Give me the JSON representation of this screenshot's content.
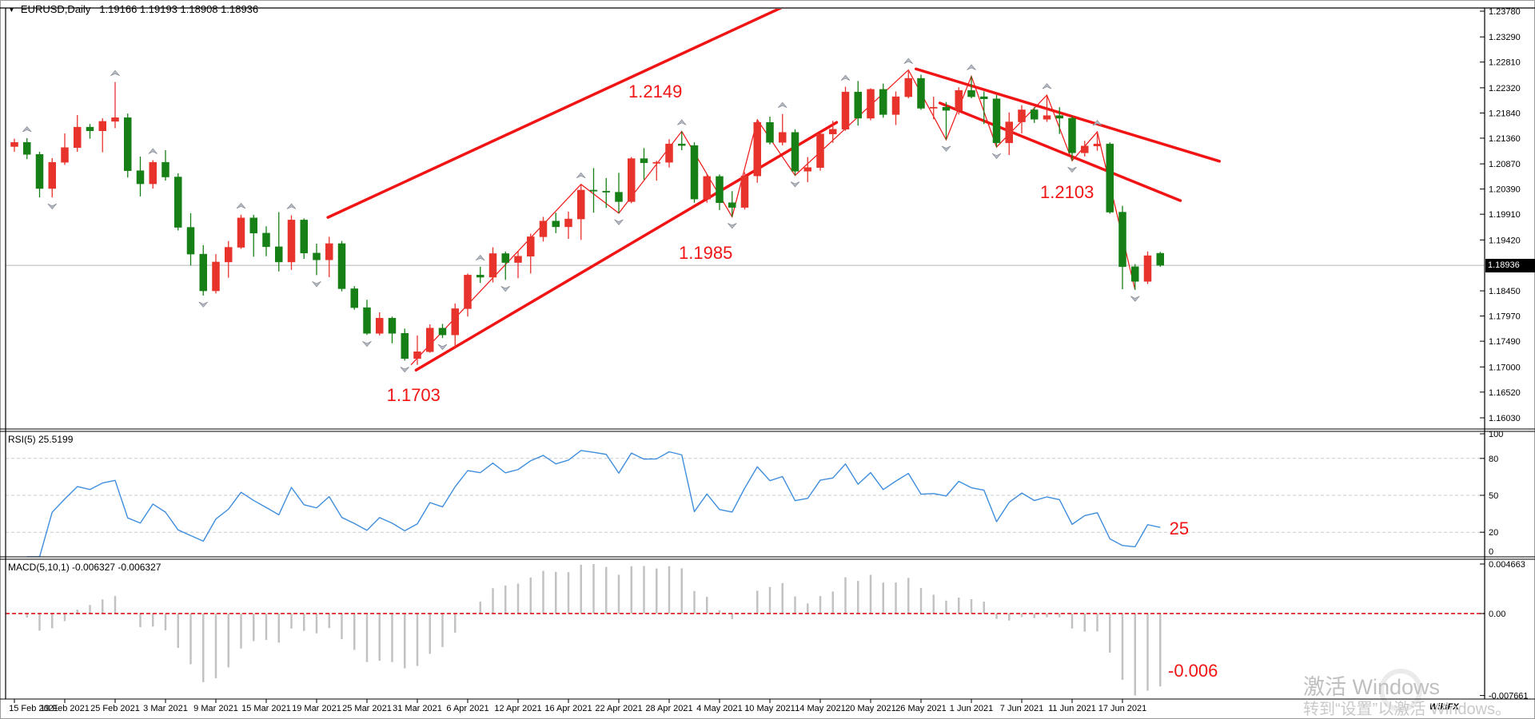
{
  "title": {
    "dropdown_icon": "▼",
    "symbol_timeframe": "EURUSD,Daily",
    "ohlc": "1.19166 1.19193 1.18908 1.18936"
  },
  "colors": {
    "bull": "#e8322c",
    "bear": "#168016",
    "line_red": "#f01414",
    "rsi_line": "#3f8ede",
    "macd_bar": "#c2c2c2",
    "level_dash": "#c8c8c8",
    "zero_dash": "#dd0000",
    "price_line": "#b8b8b8",
    "badge_bg": "#000000",
    "badge_text": "#ffffff",
    "frame": "#000000",
    "fractal": "#b4b9c2",
    "watermark_ghost": "#ebebeb"
  },
  "chart_data": {
    "type": "candlestick",
    "symbol": "EURUSD",
    "timeframe": "Daily",
    "title": "EURUSD,Daily 1.19166 1.19193 1.18908 1.18936",
    "current_price": 1.18936,
    "current_price_label": "1.18936",
    "price_axis": {
      "max": 1.2378,
      "min": 1.1603,
      "ticks": [
        "1.23780",
        "1.23290",
        "1.22810",
        "1.22320",
        "1.21840",
        "1.21360",
        "1.20870",
        "1.20390",
        "1.19910",
        "1.19420",
        "1.18450",
        "1.17970",
        "1.17490",
        "1.17000",
        "1.16520",
        "1.16030"
      ]
    },
    "candles": [
      [
        1.212,
        1.2135,
        1.211,
        1.2128
      ],
      [
        1.2128,
        1.2136,
        1.2096,
        1.2105
      ],
      [
        1.2105,
        1.211,
        1.2023,
        1.204
      ],
      [
        1.204,
        1.2098,
        1.2023,
        1.209
      ],
      [
        1.209,
        1.2145,
        1.2085,
        1.2118
      ],
      [
        1.2118,
        1.218,
        1.211,
        1.2157
      ],
      [
        1.2157,
        1.2163,
        1.2135,
        1.215
      ],
      [
        1.215,
        1.2174,
        1.2109,
        1.2168
      ],
      [
        1.2168,
        1.2243,
        1.2155,
        1.2175
      ],
      [
        1.2175,
        1.2183,
        1.2061,
        1.2074
      ],
      [
        1.2074,
        1.2101,
        1.2025,
        1.2049
      ],
      [
        1.2049,
        1.2094,
        1.204,
        1.209
      ],
      [
        1.209,
        1.2113,
        1.2055,
        1.2062
      ],
      [
        1.2062,
        1.2069,
        1.196,
        1.1966
      ],
      [
        1.1966,
        1.1993,
        1.1893,
        1.1915
      ],
      [
        1.1915,
        1.1932,
        1.1836,
        1.1845
      ],
      [
        1.1845,
        1.1915,
        1.184,
        1.19
      ],
      [
        1.19,
        1.194,
        1.187,
        1.1928
      ],
      [
        1.1928,
        1.199,
        1.1925,
        1.1984
      ],
      [
        1.1984,
        1.199,
        1.191,
        1.1955
      ],
      [
        1.1955,
        1.1968,
        1.1911,
        1.1929
      ],
      [
        1.1929,
        1.1995,
        1.1882,
        1.19
      ],
      [
        1.19,
        1.1989,
        1.1885,
        1.198
      ],
      [
        1.198,
        1.1983,
        1.1906,
        1.1917
      ],
      [
        1.1917,
        1.1935,
        1.1875,
        1.1904
      ],
      [
        1.1904,
        1.1948,
        1.1871,
        1.1935
      ],
      [
        1.1935,
        1.194,
        1.1844,
        1.1849
      ],
      [
        1.1849,
        1.1854,
        1.1809,
        1.1813
      ],
      [
        1.1813,
        1.1828,
        1.1761,
        1.1764
      ],
      [
        1.1764,
        1.1804,
        1.176,
        1.1793
      ],
      [
        1.1793,
        1.1796,
        1.1745,
        1.1764
      ],
      [
        1.1764,
        1.1773,
        1.1712,
        1.1716
      ],
      [
        1.1716,
        1.176,
        1.1704,
        1.1729
      ],
      [
        1.1729,
        1.1781,
        1.1727,
        1.1774
      ],
      [
        1.1774,
        1.1782,
        1.1755,
        1.1761
      ],
      [
        1.1761,
        1.1821,
        1.1736,
        1.1811
      ],
      [
        1.1811,
        1.1878,
        1.1796,
        1.1875
      ],
      [
        1.1875,
        1.1891,
        1.186,
        1.1871
      ],
      [
        1.1871,
        1.1928,
        1.1861,
        1.1916
      ],
      [
        1.1916,
        1.192,
        1.1866,
        1.1899
      ],
      [
        1.1899,
        1.192,
        1.1869,
        1.1911
      ],
      [
        1.1911,
        1.1954,
        1.1878,
        1.1948
      ],
      [
        1.1948,
        1.1986,
        1.1939,
        1.1978
      ],
      [
        1.1978,
        1.1994,
        1.1955,
        1.1967
      ],
      [
        1.1967,
        1.1996,
        1.1944,
        1.1982
      ],
      [
        1.1982,
        1.2048,
        1.1942,
        1.2037
      ],
      [
        1.2037,
        1.2079,
        1.1994,
        1.2035
      ],
      [
        1.2035,
        1.206,
        1.2003,
        1.2033
      ],
      [
        1.2033,
        1.207,
        1.1993,
        1.2015
      ],
      [
        1.2015,
        1.21,
        1.2012,
        1.2097
      ],
      [
        1.2097,
        1.2117,
        1.2057,
        1.2089
      ],
      [
        1.2089,
        1.2093,
        1.2055,
        1.209
      ],
      [
        1.209,
        1.2134,
        1.208,
        1.2125
      ],
      [
        1.2125,
        1.2149,
        1.2113,
        1.2122
      ],
      [
        1.2122,
        1.2128,
        1.2013,
        1.202
      ],
      [
        1.202,
        1.2068,
        1.2013,
        1.2063
      ],
      [
        1.2063,
        1.2067,
        1.1999,
        1.2013
      ],
      [
        1.2013,
        1.2035,
        1.1986,
        1.2004
      ],
      [
        1.2004,
        1.2071,
        1.2,
        1.2064
      ],
      [
        1.2064,
        1.2171,
        1.2051,
        1.2166
      ],
      [
        1.2166,
        1.2177,
        1.2124,
        1.2128
      ],
      [
        1.2128,
        1.2182,
        1.2122,
        1.2147
      ],
      [
        1.2147,
        1.2153,
        1.2065,
        1.2073
      ],
      [
        1.2073,
        1.21,
        1.2052,
        1.208
      ],
      [
        1.208,
        1.2148,
        1.2074,
        1.2144
      ],
      [
        1.2144,
        1.2169,
        1.2127,
        1.2153
      ],
      [
        1.2153,
        1.2234,
        1.215,
        1.2224
      ],
      [
        1.2224,
        1.2245,
        1.216,
        1.2174
      ],
      [
        1.2174,
        1.2231,
        1.217,
        1.2229
      ],
      [
        1.2229,
        1.224,
        1.2175,
        1.2181
      ],
      [
        1.2181,
        1.2225,
        1.2161,
        1.2215
      ],
      [
        1.2215,
        1.2266,
        1.2212,
        1.225
      ],
      [
        1.225,
        1.2257,
        1.219,
        1.2193
      ],
      [
        1.2193,
        1.2215,
        1.2172,
        1.2195
      ],
      [
        1.2195,
        1.2205,
        1.2133,
        1.2189
      ],
      [
        1.2189,
        1.2233,
        1.2181,
        1.2227
      ],
      [
        1.2227,
        1.2254,
        1.2212,
        1.2215
      ],
      [
        1.2215,
        1.2225,
        1.2163,
        1.2211
      ],
      [
        1.2211,
        1.2218,
        1.2119,
        1.2127
      ],
      [
        1.2127,
        1.2185,
        1.2104,
        1.2167
      ],
      [
        1.2167,
        1.2199,
        1.2145,
        1.219
      ],
      [
        1.219,
        1.2195,
        1.2165,
        1.2172
      ],
      [
        1.2172,
        1.2218,
        1.2167,
        1.2179
      ],
      [
        1.2179,
        1.2195,
        1.2144,
        1.2174
      ],
      [
        1.2174,
        1.2178,
        1.2093,
        1.2108
      ],
      [
        1.2108,
        1.2131,
        1.2101,
        1.2121
      ],
      [
        1.2121,
        1.2148,
        1.2112,
        1.2125
      ],
      [
        1.2125,
        1.2128,
        1.1992,
        1.1995
      ],
      [
        1.1995,
        1.2007,
        1.1848,
        1.1891
      ],
      [
        1.1891,
        1.1896,
        1.1847,
        1.1863
      ],
      [
        1.1863,
        1.192,
        1.1858,
        1.1912
      ],
      [
        1.19166,
        1.19193,
        1.18908,
        1.18936
      ]
    ],
    "date_ticks": [
      {
        "i": 0,
        "label": "15 Feb 2021"
      },
      {
        "i": 4,
        "label": "19 Feb 2021"
      },
      {
        "i": 8,
        "label": "25 Feb 2021"
      },
      {
        "i": 12,
        "label": "3 Mar 2021"
      },
      {
        "i": 16,
        "label": "9 Mar 2021"
      },
      {
        "i": 20,
        "label": "15 Mar 2021"
      },
      {
        "i": 24,
        "label": "19 Mar 2021"
      },
      {
        "i": 28,
        "label": "25 Mar 2021"
      },
      {
        "i": 32,
        "label": "31 Mar 2021"
      },
      {
        "i": 36,
        "label": "6 Apr 2021"
      },
      {
        "i": 40,
        "label": "12 Apr 2021"
      },
      {
        "i": 44,
        "label": "16 Apr 2021"
      },
      {
        "i": 48,
        "label": "22 Apr 2021"
      },
      {
        "i": 52,
        "label": "28 Apr 2021"
      },
      {
        "i": 56,
        "label": "4 May 2021"
      },
      {
        "i": 60,
        "label": "10 May 2021"
      },
      {
        "i": 64,
        "label": "14 May 2021"
      },
      {
        "i": 68,
        "label": "20 May 2021"
      },
      {
        "i": 72,
        "label": "26 May 2021"
      },
      {
        "i": 76,
        "label": "1 Jun 2021"
      },
      {
        "i": 80,
        "label": "7 Jun 2021"
      },
      {
        "i": 84,
        "label": "11 Jun 2021"
      },
      {
        "i": 88,
        "label": "17 Jun 2021"
      }
    ],
    "zigzag": [
      [
        31.5,
        1.1704
      ],
      [
        45,
        1.2048
      ],
      [
        48,
        1.1993
      ],
      [
        53,
        1.2149
      ],
      [
        57,
        1.1986
      ],
      [
        59,
        1.2171
      ],
      [
        62,
        1.2065
      ],
      [
        71,
        1.2266
      ],
      [
        74,
        1.2133
      ],
      [
        76,
        1.2254
      ],
      [
        78,
        1.2119
      ],
      [
        82,
        1.2218
      ],
      [
        84,
        1.2093
      ],
      [
        86,
        1.2148
      ],
      [
        89,
        1.1847
      ]
    ],
    "trendlines": [
      {
        "i1": 24.9,
        "p1": 1.1985,
        "i2": 62.2,
        "p2": 1.2399,
        "w": 3.5
      },
      {
        "i1": 31.9,
        "p1": 1.1694,
        "i2": 65.3,
        "p2": 1.2166,
        "w": 3.5
      },
      {
        "i1": 71.6,
        "p1": 1.2268,
        "i2": 95.7,
        "p2": 1.2092,
        "w": 3.5
      },
      {
        "i1": 73.5,
        "p1": 1.2203,
        "i2": 92.6,
        "p2": 1.2017,
        "w": 3.5
      }
    ],
    "fractals_up": [
      1,
      8,
      11,
      18,
      22,
      37,
      45,
      53,
      61,
      66,
      71,
      76,
      82,
      86
    ],
    "fractals_down": [
      3,
      15,
      24,
      28,
      31,
      34,
      39,
      48,
      57,
      62,
      74,
      78,
      84,
      89
    ],
    "annotations": [
      {
        "text": "1.2149",
        "panel": "main",
        "i": 50.9,
        "value": 1.2224
      },
      {
        "text": "1.1985",
        "panel": "main",
        "i": 54.9,
        "value": 1.1917
      },
      {
        "text": "1.2103",
        "panel": "main",
        "i": 83.6,
        "value": 1.2032
      },
      {
        "text": "1.1703",
        "panel": "main",
        "i": 31.7,
        "value": 1.1646
      },
      {
        "text": "25",
        "panel": "rsi",
        "i": 92.5,
        "value": 22.7
      },
      {
        "text": "-0.006",
        "panel": "macd",
        "i": 93.6,
        "value": -0.0054
      }
    ],
    "rsi": {
      "label": "RSI(5) 25.5199",
      "period": 5,
      "value": 25.5199,
      "range": [
        0,
        100
      ],
      "levels": [
        80,
        50,
        20
      ],
      "ticks": [
        "100",
        "80",
        "50",
        "20",
        "0"
      ]
    },
    "macd": {
      "label": "MACD(5,10,1) -0.006327 -0.006327",
      "fast": 5,
      "slow": 10,
      "signal": 1,
      "value": -0.006327,
      "tick_top": "0.004663",
      "tick_zero": "0.00",
      "tick_bottom": "-0.007661"
    }
  },
  "watermark": {
    "line1": "激活 Windows",
    "line2": "转到“设置”以激活 Windows。",
    "ghost": "WikiFX"
  }
}
